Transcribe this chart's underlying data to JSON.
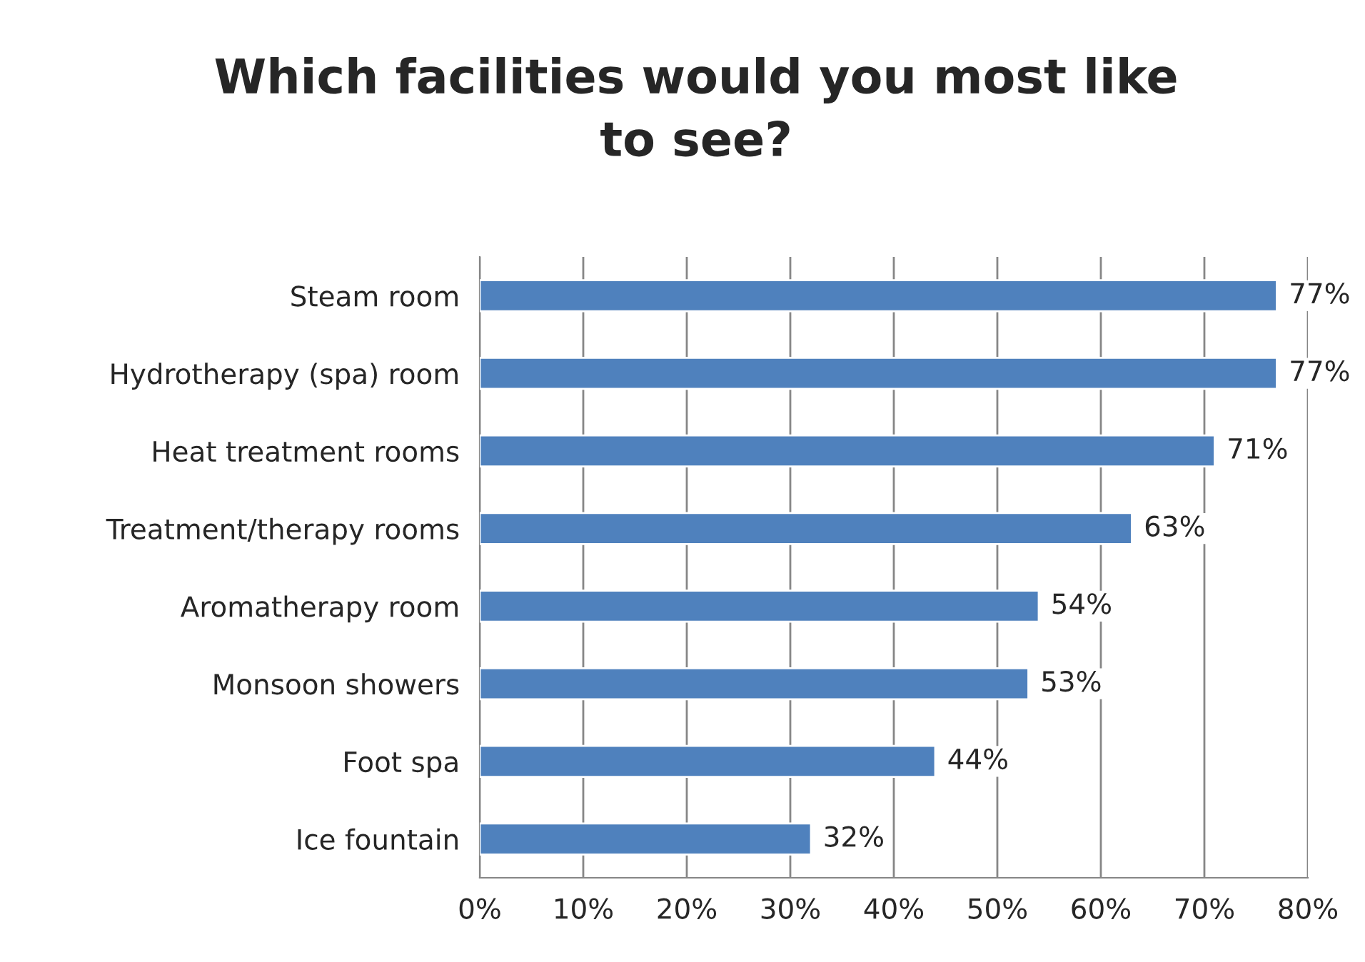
{
  "chart_data": {
    "type": "bar",
    "orientation": "horizontal",
    "title": "Which facilities would you most like\nto see?",
    "categories": [
      "Steam room",
      "Hydrotherapy (spa) room",
      "Heat treatment rooms",
      "Treatment/therapy rooms",
      "Aromatherapy room",
      "Monsoon showers",
      "Foot spa",
      "Ice fountain"
    ],
    "values": [
      77,
      77,
      71,
      63,
      54,
      53,
      44,
      32
    ],
    "value_labels": [
      "77%",
      "77%",
      "71%",
      "63%",
      "54%",
      "53%",
      "44%",
      "32%"
    ],
    "color": "#4f81bd",
    "xlim": [
      0,
      80
    ],
    "xticks": [
      {
        "value": 0,
        "label": "0%"
      },
      {
        "value": 10,
        "label": "10%"
      },
      {
        "value": 20,
        "label": "20%"
      },
      {
        "value": 30,
        "label": "30%"
      },
      {
        "value": 40,
        "label": "40%"
      },
      {
        "value": 50,
        "label": "50%"
      },
      {
        "value": 60,
        "label": "60%"
      },
      {
        "value": 70,
        "label": "70%"
      },
      {
        "value": 80,
        "label": "80%"
      }
    ],
    "grid": "x",
    "legend": false
  }
}
